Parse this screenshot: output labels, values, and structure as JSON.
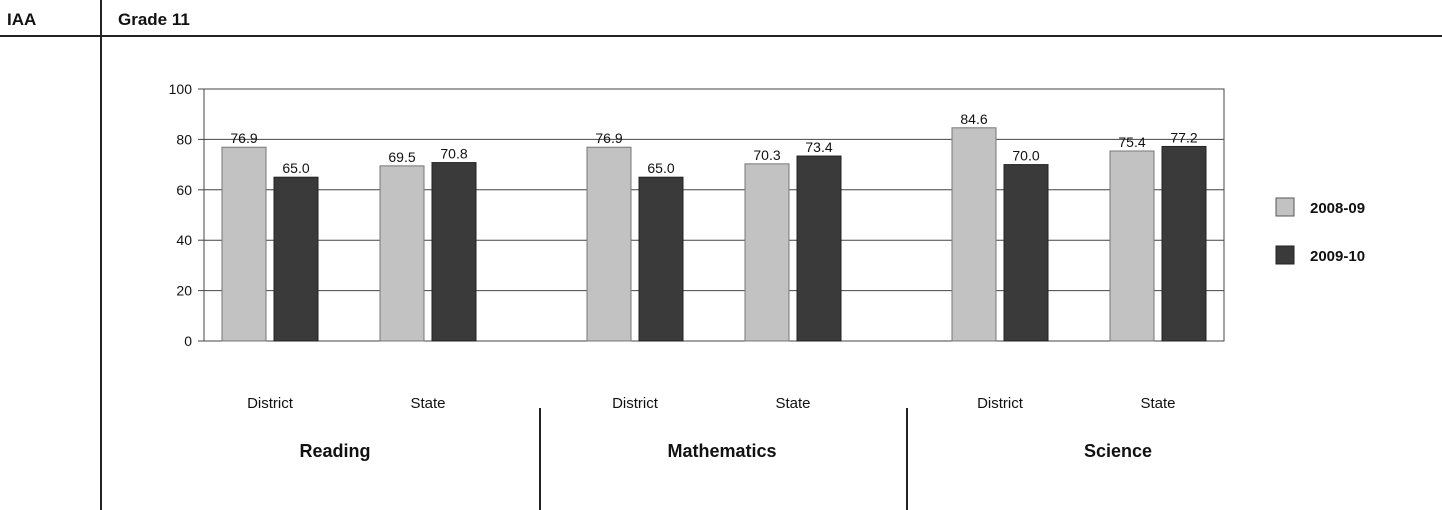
{
  "header": {
    "section_label": "IAA",
    "grade_label": "Grade 11"
  },
  "colors": {
    "year_2008_09": "#c2c2c2",
    "year_2009_10": "#3a3a3a"
  },
  "chart_data": {
    "type": "bar",
    "ylim": [
      0,
      100
    ],
    "yticks": [
      0,
      20,
      40,
      60,
      80,
      100
    ],
    "grid": true,
    "legend": "right",
    "subjects": [
      "Reading",
      "Mathematics",
      "Science"
    ],
    "groups": [
      "District",
      "State"
    ],
    "categories": [
      "District",
      "State",
      "District",
      "State",
      "District",
      "State"
    ],
    "series": [
      {
        "name": "2008-09",
        "values": [
          76.9,
          69.5,
          76.9,
          70.3,
          84.6,
          75.4
        ]
      },
      {
        "name": "2009-10",
        "values": [
          65.0,
          70.8,
          65.0,
          73.4,
          70.0,
          77.2
        ]
      }
    ]
  }
}
